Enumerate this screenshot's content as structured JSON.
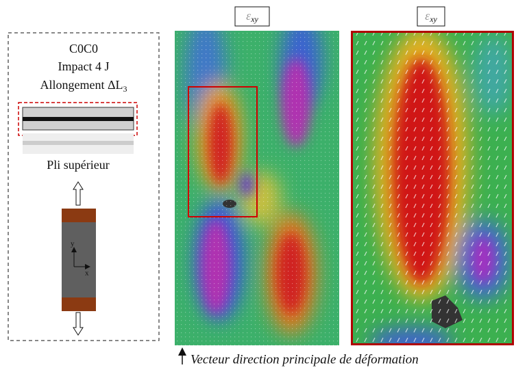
{
  "left_panel": {
    "material": "C0C0",
    "impact": "Impact 4 J",
    "elongation": {
      "text": "Allongement ΔL",
      "subscript": "3"
    },
    "ply_label": "Pli supérieur",
    "axes": {
      "y": "y",
      "x": "x"
    }
  },
  "maps": [
    {
      "label": {
        "symbol": "ε",
        "subscript": "xy"
      }
    },
    {
      "label": {
        "symbol": "ε",
        "subscript": "xy"
      }
    }
  ],
  "caption": "Vecteur direction principale de déformation"
}
